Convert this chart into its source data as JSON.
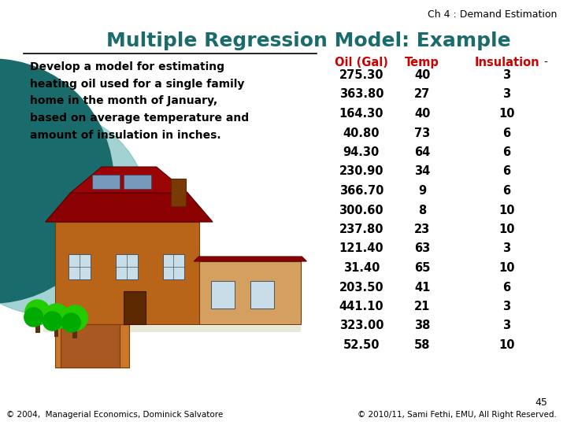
{
  "title": "Multiple Regression Model: Example",
  "chapter": "Ch 4 : Demand Estimation",
  "body_text": "Develop a model for estimating\nheating oil used for a single family\nhome in the month of January,\nbased on average temperature and\namount of insulation in inches.",
  "col_headers": [
    "Oil (Gal)",
    "Temp",
    "Insulation"
  ],
  "table_data": [
    [
      275.3,
      40,
      3
    ],
    [
      363.8,
      27,
      3
    ],
    [
      164.3,
      40,
      10
    ],
    [
      40.8,
      73,
      6
    ],
    [
      94.3,
      64,
      6
    ],
    [
      230.9,
      34,
      6
    ],
    [
      366.7,
      9,
      6
    ],
    [
      300.6,
      8,
      10
    ],
    [
      237.8,
      23,
      10
    ],
    [
      121.4,
      63,
      3
    ],
    [
      31.4,
      65,
      10
    ],
    [
      203.5,
      41,
      6
    ],
    [
      441.1,
      21,
      3
    ],
    [
      323.0,
      38,
      3
    ],
    [
      52.5,
      58,
      10
    ]
  ],
  "footer_left": "© 2004,  Managerial Economics, Dominick Salvatore",
  "footer_right": "© 2010/11, Sami Fethi, EMU, All Right Reserved.",
  "page_number": "45",
  "title_color": "#1a6b6b",
  "header_color": "#cc0000",
  "bg_color": "#ffffff",
  "teal_dark": "#1a6b6b",
  "teal_light": "#7dbfbf",
  "body_text_fontsize": 10,
  "table_fontsize": 10.5,
  "header_fontsize": 10.5,
  "title_fontsize": 18,
  "chapter_fontsize": 9,
  "footer_fontsize": 7.5
}
